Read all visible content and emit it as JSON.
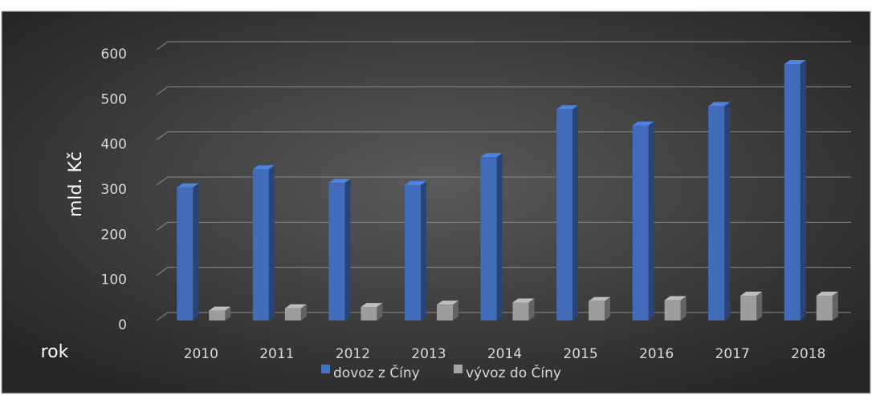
{
  "chart_data": {
    "type": "bar3d",
    "y_label": "mld. Kč",
    "x_label": "rok",
    "categories": [
      "2010",
      "2011",
      "2012",
      "2013",
      "2014",
      "2015",
      "2016",
      "2017",
      "2018"
    ],
    "series": [
      {
        "name": "dovoz z Číny",
        "color": "#4472c4",
        "values": [
          295,
          335,
          305,
          300,
          362,
          468,
          432,
          475,
          568
        ]
      },
      {
        "name": "vývoz do Číny",
        "color": "#a5a5a5",
        "values": [
          22,
          27,
          30,
          35,
          40,
          43,
          45,
          55,
          55
        ]
      }
    ],
    "ylim": [
      0,
      600
    ],
    "yticks": [
      0,
      100,
      200,
      300,
      400,
      500,
      600
    ],
    "grid": true,
    "legend": "bottom"
  }
}
